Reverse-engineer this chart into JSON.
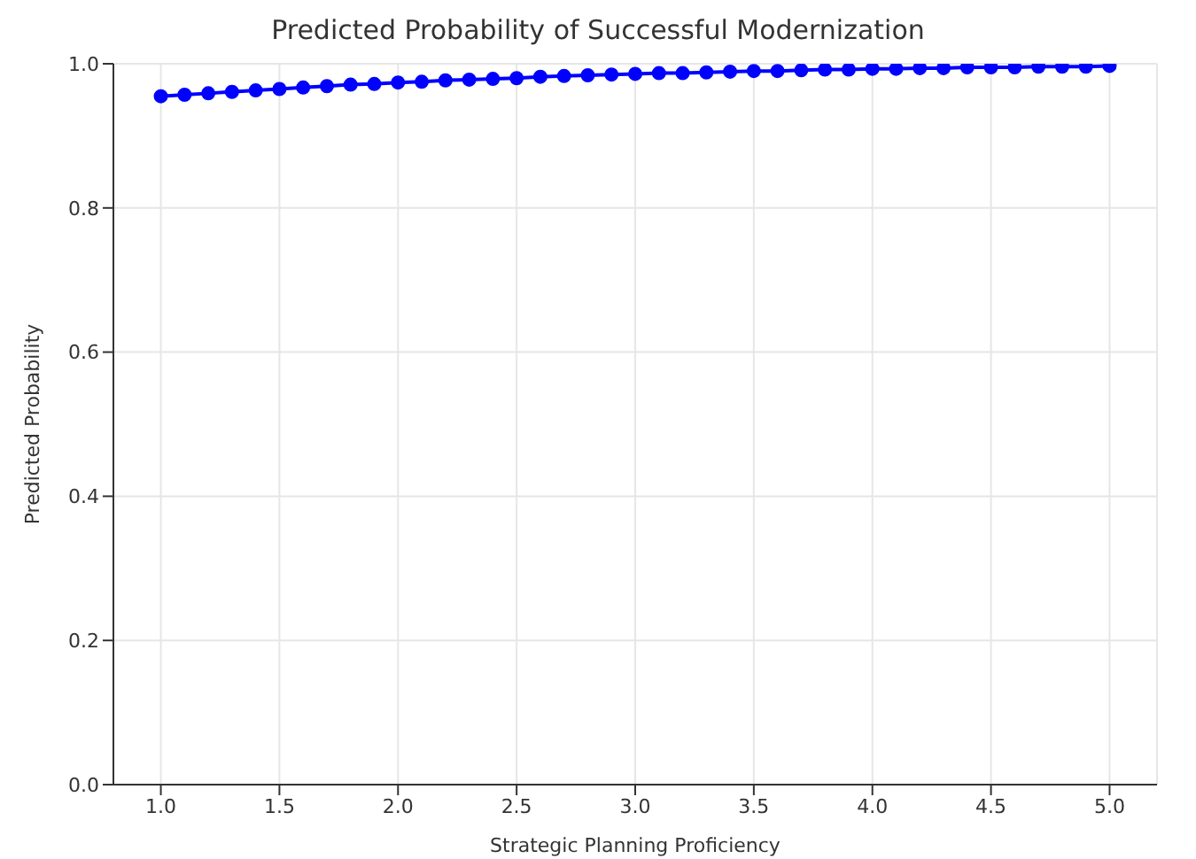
{
  "chart_data": {
    "type": "line",
    "title": "Predicted Probability of Successful Modernization",
    "xlabel": "Strategic Planning Proficiency",
    "ylabel": "Predicted Probability",
    "x": [
      1.0,
      1.1,
      1.2,
      1.3,
      1.4,
      1.5,
      1.6,
      1.7,
      1.8,
      1.9,
      2.0,
      2.1,
      2.2,
      2.3,
      2.4,
      2.5,
      2.6,
      2.7,
      2.8,
      2.9,
      3.0,
      3.1,
      3.2,
      3.3,
      3.4,
      3.5,
      3.6,
      3.7,
      3.8,
      3.9,
      4.0,
      4.1,
      4.2,
      4.3,
      4.4,
      4.5,
      4.6,
      4.7,
      4.8,
      4.9,
      5.0
    ],
    "series": [
      {
        "color": "#0000ff",
        "values": [
          0.955,
          0.957,
          0.959,
          0.961,
          0.963,
          0.965,
          0.967,
          0.969,
          0.971,
          0.972,
          0.974,
          0.975,
          0.977,
          0.978,
          0.979,
          0.98,
          0.982,
          0.983,
          0.984,
          0.985,
          0.986,
          0.987,
          0.987,
          0.988,
          0.989,
          0.99,
          0.99,
          0.991,
          0.992,
          0.992,
          0.993,
          0.993,
          0.994,
          0.994,
          0.995,
          0.995,
          0.995,
          0.996,
          0.996,
          0.996,
          0.997
        ]
      }
    ],
    "xlim": [
      0.8,
      5.2
    ],
    "xticks": [
      {
        "value": 1,
        "label": "1.0"
      },
      {
        "value": 1.5,
        "label": "1.5"
      },
      {
        "value": 2,
        "label": "2.0"
      },
      {
        "value": 2.5,
        "label": "2.5"
      },
      {
        "value": 3,
        "label": "3.0"
      },
      {
        "value": 3.5,
        "label": "3.5"
      },
      {
        "value": 4,
        "label": "4.0"
      },
      {
        "value": 4.5,
        "label": "4.5"
      },
      {
        "value": 5,
        "label": "5.0"
      }
    ],
    "ylim": [
      0,
      1
    ],
    "yticks": [
      {
        "value": 0,
        "label": "0.0"
      },
      {
        "value": 0.2,
        "label": "0.2"
      },
      {
        "value": 0.4,
        "label": "0.4"
      },
      {
        "value": 0.6,
        "label": "0.6"
      },
      {
        "value": 0.8,
        "label": "0.8"
      },
      {
        "value": 1,
        "label": "1.0"
      }
    ],
    "grid": true,
    "marker": "circle",
    "line_style": "solid"
  }
}
